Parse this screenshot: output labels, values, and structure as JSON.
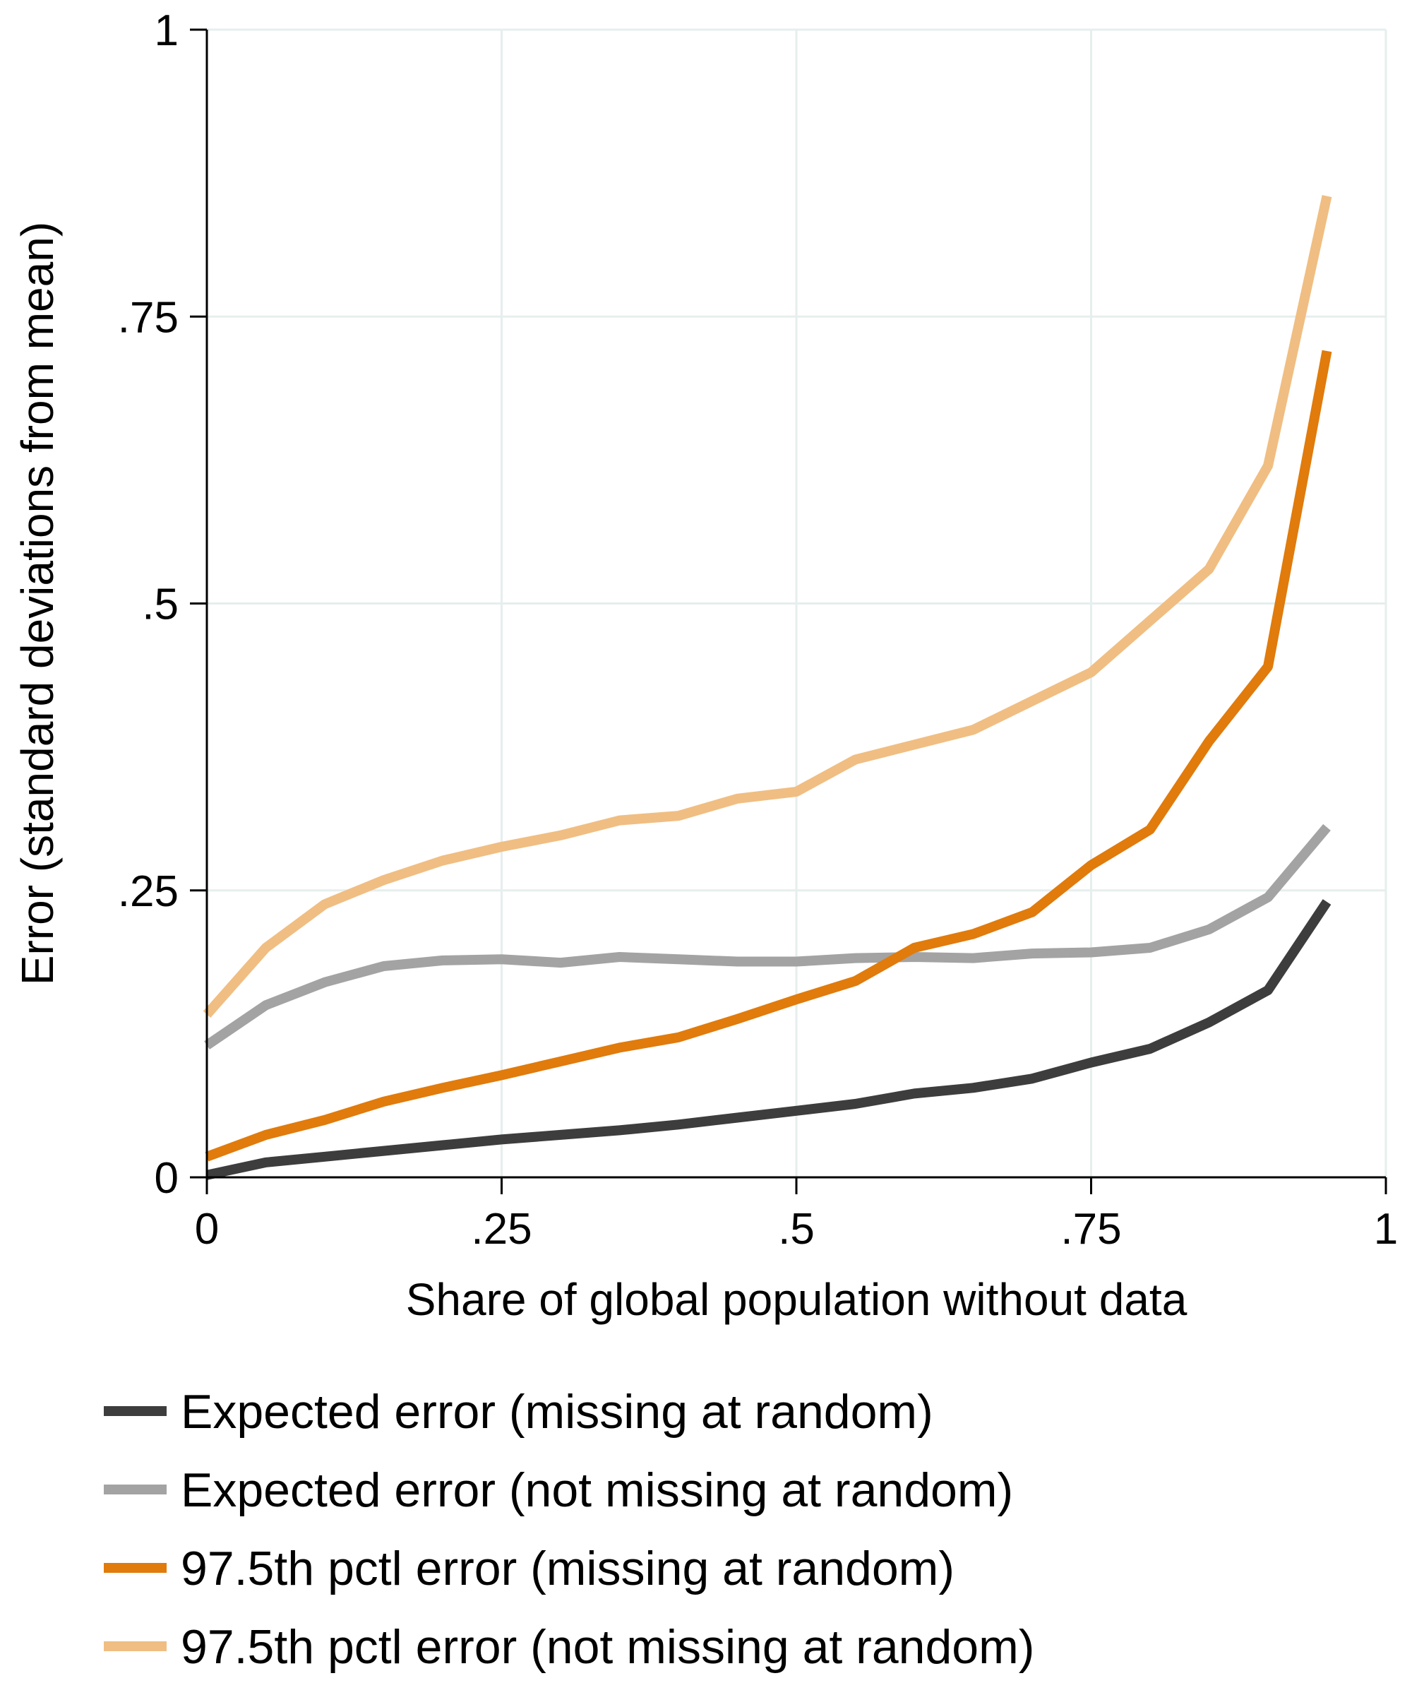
{
  "chart_data": {
    "type": "line",
    "xlabel": "Share of global population without data",
    "ylabel": "Error (standard deviations from mean)",
    "xlim": [
      0,
      1
    ],
    "ylim": [
      0,
      1
    ],
    "x_ticks": [
      0,
      0.25,
      0.5,
      0.75,
      1
    ],
    "x_tick_labels": [
      "0",
      ".25",
      ".5",
      ".75",
      "1"
    ],
    "y_ticks": [
      0,
      0.25,
      0.5,
      0.75,
      1
    ],
    "y_tick_labels": [
      "0",
      ".25",
      ".5",
      ".75",
      "1"
    ],
    "grid": true,
    "legend_position": "bottom",
    "x": [
      0,
      0.05,
      0.1,
      0.15,
      0.2,
      0.25,
      0.3,
      0.35,
      0.4,
      0.45,
      0.5,
      0.55,
      0.6,
      0.65,
      0.7,
      0.75,
      0.8,
      0.85,
      0.9,
      0.95
    ],
    "series": [
      {
        "name": "Expected error (missing at random)",
        "color": "#3d3d3d",
        "values": [
          0.002,
          0.013,
          0.018,
          0.023,
          0.028,
          0.033,
          0.037,
          0.041,
          0.046,
          0.052,
          0.058,
          0.064,
          0.073,
          0.078,
          0.086,
          0.1,
          0.112,
          0.135,
          0.163,
          0.24
        ]
      },
      {
        "name": "Expected error (not missing at random)",
        "color": "#a3a3a3",
        "values": [
          0.115,
          0.15,
          0.17,
          0.184,
          0.189,
          0.19,
          0.187,
          0.192,
          0.19,
          0.188,
          0.188,
          0.191,
          0.192,
          0.191,
          0.195,
          0.196,
          0.2,
          0.216,
          0.244,
          0.305
        ]
      },
      {
        "name": "97.5th pctl error (missing at random)",
        "color": "#e07b0c",
        "values": [
          0.018,
          0.037,
          0.05,
          0.066,
          0.078,
          0.089,
          0.101,
          0.113,
          0.122,
          0.138,
          0.155,
          0.171,
          0.2,
          0.212,
          0.231,
          0.272,
          0.303,
          0.38,
          0.445,
          0.72
        ]
      },
      {
        "name": "97.5th pctl error (not missing at random)",
        "color": "#f0be82",
        "values": [
          0.142,
          0.2,
          0.238,
          0.259,
          0.276,
          0.288,
          0.298,
          0.311,
          0.315,
          0.33,
          0.336,
          0.364,
          0.377,
          0.39,
          0.415,
          0.44,
          0.485,
          0.53,
          0.62,
          0.855
        ]
      }
    ]
  }
}
